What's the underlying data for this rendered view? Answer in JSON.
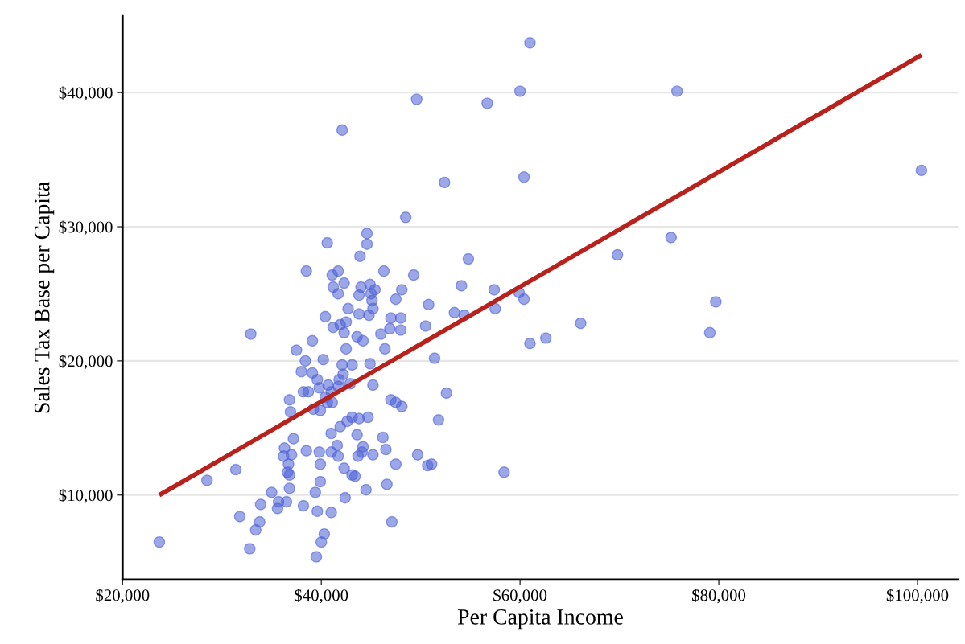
{
  "chart_data": {
    "type": "scatter",
    "xlabel": "Per Capita Income",
    "ylabel": "Sales Tax Base per Capita",
    "xlim": [
      20000,
      104100
    ],
    "ylim": [
      3700,
      45700
    ],
    "xticks": [
      {
        "value": 20000,
        "label": "$20,000"
      },
      {
        "value": 40000,
        "label": "$40,000"
      },
      {
        "value": 60000,
        "label": "$60,000"
      },
      {
        "value": 80000,
        "label": "$80,000"
      },
      {
        "value": 100000,
        "label": "$100,000"
      }
    ],
    "yticks": [
      {
        "value": 10000,
        "label": "$10,000"
      },
      {
        "value": 20000,
        "label": "$20,000"
      },
      {
        "value": 30000,
        "label": "$30,000"
      },
      {
        "value": 40000,
        "label": "$40,000"
      }
    ],
    "grid": "y",
    "marker": "circle",
    "legend": false,
    "series": [
      {
        "color": "#4a5fd6",
        "x": [
          23700,
          28500,
          31400,
          31800,
          32800,
          61000,
          42100,
          49600,
          56700,
          60000,
          75800,
          100400,
          52400,
          60400,
          48500,
          75200,
          69800,
          54800,
          66100,
          62600,
          61000,
          79100,
          79700,
          60400,
          59900,
          57400,
          57500,
          54100,
          53400,
          54400,
          49300,
          50800,
          50500,
          51400,
          52600,
          51800,
          58400,
          51100,
          50700,
          49700,
          47100,
          47500,
          46500,
          46200,
          46600,
          44500,
          45200,
          44200,
          44100,
          43700,
          43400,
          43100,
          43600,
          43800,
          43100,
          44700,
          42600,
          41900,
          41600,
          41700,
          41000,
          42300,
          42400,
          41000,
          39900,
          39900,
          39800,
          41000,
          40300,
          40000,
          39500,
          39600,
          39400,
          38200,
          38500,
          37200,
          37000,
          36900,
          36800,
          36700,
          36800,
          36600,
          36800,
          36500,
          36200,
          36300,
          35700,
          35600,
          35000,
          33900,
          33800,
          33400,
          32900,
          37500,
          38000,
          38400,
          38200,
          38700,
          39100,
          39100,
          38500,
          39200,
          39600,
          39800,
          39900,
          40400,
          40200,
          40400,
          40600,
          41100,
          41200,
          41200,
          40700,
          41000,
          41100,
          40600,
          41700,
          41700,
          42300,
          41900,
          42500,
          42300,
          42100,
          42200,
          41800,
          41700,
          42500,
          42700,
          42900,
          43100,
          43900,
          43800,
          44000,
          43800,
          43600,
          44200,
          44600,
          44600,
          44900,
          45000,
          45100,
          45200,
          45400,
          44800,
          44900,
          45200,
          46000,
          46300,
          46400,
          47000,
          46900,
          47500,
          48000,
          48000,
          48100,
          47000,
          47500,
          48100
        ],
        "values": [
          6500,
          11100,
          11900,
          8400,
          6000,
          43700,
          37200,
          39500,
          39200,
          40100,
          40100,
          34200,
          33300,
          33700,
          30700,
          29200,
          27900,
          27600,
          22800,
          21700,
          21300,
          22100,
          24400,
          24600,
          25100,
          25300,
          23900,
          25600,
          23600,
          23400,
          26400,
          24200,
          22600,
          20200,
          17600,
          15600,
          11700,
          12300,
          12200,
          13000,
          8000,
          12300,
          13400,
          14300,
          10800,
          10400,
          13000,
          13600,
          13200,
          12900,
          11400,
          11500,
          14500,
          15700,
          15800,
          15800,
          15500,
          15100,
          13700,
          12900,
          13200,
          12000,
          9800,
          8700,
          12300,
          11000,
          13200,
          14600,
          7100,
          6500,
          5400,
          8800,
          10200,
          9200,
          13300,
          14200,
          13000,
          16200,
          17100,
          12300,
          11500,
          11700,
          10500,
          9500,
          12900,
          13500,
          9500,
          9000,
          10200,
          9300,
          8000,
          7400,
          22000,
          20800,
          19200,
          20000,
          17700,
          17700,
          21500,
          19100,
          26700,
          16400,
          18600,
          18000,
          16300,
          17300,
          20100,
          23300,
          28800,
          26400,
          25500,
          22500,
          18200,
          17700,
          16900,
          16900,
          25000,
          26700,
          25800,
          22700,
          22900,
          22100,
          19700,
          19000,
          18600,
          18100,
          20900,
          23900,
          18300,
          19700,
          27800,
          24900,
          25500,
          23500,
          21800,
          21500,
          29500,
          28700,
          25700,
          25000,
          24500,
          23900,
          25300,
          23400,
          19800,
          18200,
          22000,
          26700,
          20900,
          23200,
          22400,
          24600,
          23200,
          22300,
          25300,
          17100,
          16900,
          16600
        ]
      },
      {
        "type": "line",
        "color": "#b8221c",
        "x": [
          23700,
          100400
        ],
        "values": [
          10000,
          42800
        ],
        "marker": "none",
        "line_style": "solid"
      }
    ]
  }
}
